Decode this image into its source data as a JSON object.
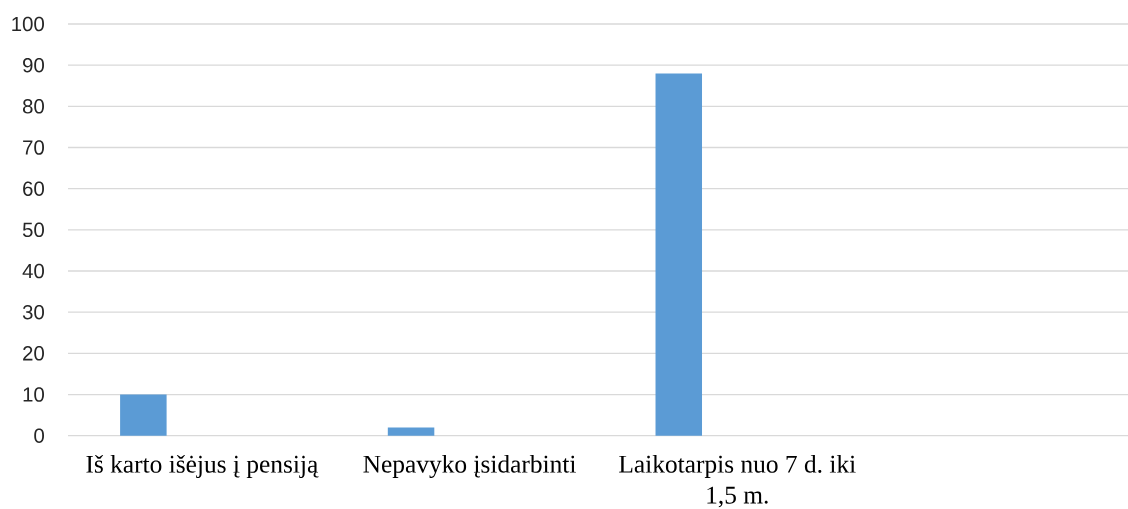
{
  "chart_data": {
    "type": "bar",
    "categories": [
      "Iš karto išėjus į pensiją",
      "Nepavyko įsidarbinti",
      "Laikotarpis nuo 7 d. iki 1,5 m.",
      null
    ],
    "values": [
      10,
      2,
      88,
      null
    ],
    "color": "#5b9bd5",
    "ylim": [
      0,
      100
    ],
    "yticks": [
      0,
      10,
      20,
      30,
      40,
      50,
      60,
      70,
      80,
      90,
      100
    ],
    "grid": "y"
  }
}
